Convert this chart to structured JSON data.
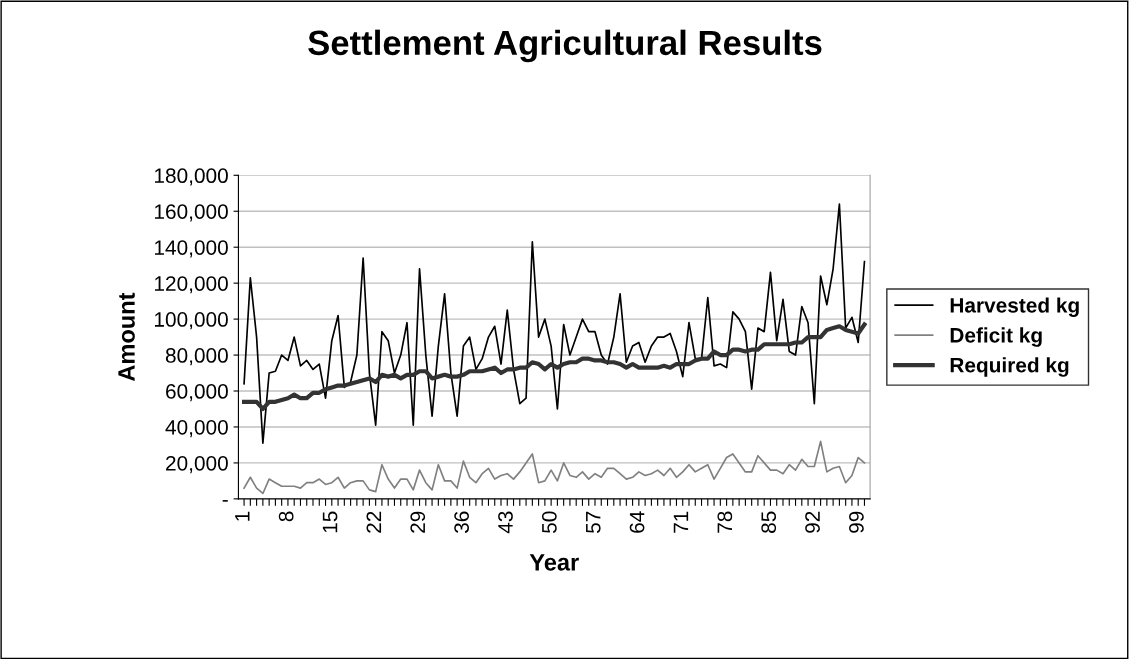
{
  "chart_data": {
    "type": "line",
    "title": "Settlement Agricultural Results",
    "xlabel": "Year",
    "ylabel": "Amount",
    "categories": [
      "1",
      null,
      null,
      null,
      null,
      null,
      null,
      "8",
      null,
      null,
      null,
      null,
      null,
      null,
      "15",
      null,
      null,
      null,
      null,
      null,
      null,
      "22",
      null,
      null,
      null,
      null,
      null,
      null,
      "29",
      null,
      null,
      null,
      null,
      null,
      null,
      "36",
      null,
      null,
      null,
      null,
      null,
      null,
      "43",
      null,
      null,
      null,
      null,
      null,
      null,
      "50",
      null,
      null,
      null,
      null,
      null,
      null,
      "57",
      null,
      null,
      null,
      null,
      null,
      null,
      "64",
      null,
      null,
      null,
      null,
      null,
      null,
      "71",
      null,
      null,
      null,
      null,
      null,
      null,
      "78",
      null,
      null,
      null,
      null,
      null,
      null,
      "85",
      null,
      null,
      null,
      null,
      null,
      null,
      "92",
      null,
      null,
      null,
      null,
      null,
      null,
      "99",
      null
    ],
    "series": [
      {
        "name": "Harvested kg",
        "color": "#000000",
        "values": [
          64000,
          123000,
          90000,
          31000,
          70000,
          71000,
          80000,
          77000,
          90000,
          74000,
          77000,
          72000,
          75000,
          56000,
          88000,
          102000,
          62000,
          65000,
          80000,
          134000,
          70000,
          41000,
          93000,
          88000,
          70000,
          80000,
          98000,
          41000,
          128000,
          80000,
          46000,
          85000,
          114000,
          70000,
          46000,
          85000,
          90000,
          72000,
          78000,
          90000,
          96000,
          75000,
          105000,
          72000,
          53000,
          56000,
          143000,
          90000,
          100000,
          85000,
          50000,
          97000,
          80000,
          90000,
          100000,
          93000,
          93000,
          80000,
          75000,
          90000,
          114000,
          76000,
          85000,
          87000,
          76000,
          85000,
          90000,
          90000,
          92000,
          82000,
          68000,
          98000,
          78000,
          78000,
          112000,
          74000,
          75000,
          73000,
          104000,
          100000,
          93000,
          61000,
          95000,
          93000,
          126000,
          88000,
          111000,
          82000,
          80000,
          107000,
          98000,
          53000,
          124000,
          108000,
          128000,
          164000,
          95000,
          101000,
          87000,
          132000
        ]
      },
      {
        "name": "Deficit kg",
        "color": "#808080",
        "values": [
          6000,
          12000,
          6000,
          3000,
          11000,
          9000,
          7000,
          7000,
          7000,
          6000,
          9000,
          9000,
          11000,
          8000,
          9000,
          12000,
          6000,
          9000,
          10000,
          10000,
          5000,
          4000,
          19000,
          11000,
          6000,
          11000,
          11000,
          5000,
          16000,
          9000,
          5000,
          19000,
          10000,
          10000,
          6000,
          21000,
          12000,
          9000,
          14000,
          17000,
          11000,
          13000,
          14000,
          11000,
          15000,
          20000,
          25000,
          9000,
          10000,
          16000,
          10000,
          20000,
          13000,
          12000,
          15000,
          11000,
          14000,
          12000,
          17000,
          17000,
          14000,
          11000,
          12000,
          15000,
          13000,
          14000,
          16000,
          13000,
          17000,
          12000,
          15000,
          19000,
          15000,
          17000,
          19000,
          11000,
          17000,
          23000,
          25000,
          20000,
          15000,
          15000,
          24000,
          20000,
          16000,
          16000,
          14000,
          19000,
          16000,
          22000,
          18000,
          18000,
          32000,
          15000,
          17000,
          18000,
          9000,
          13000,
          23000,
          20000
        ]
      },
      {
        "name": "Required kg",
        "color": "#333333",
        "values": [
          54000,
          54000,
          54000,
          50000,
          54000,
          54000,
          55000,
          56000,
          58000,
          56000,
          56000,
          59000,
          59000,
          61000,
          62000,
          63000,
          63000,
          64000,
          65000,
          66000,
          67000,
          65000,
          69000,
          68000,
          69000,
          67000,
          69000,
          69000,
          71000,
          71000,
          67000,
          68000,
          69000,
          68000,
          68000,
          69000,
          71000,
          71000,
          71000,
          72000,
          73000,
          70000,
          72000,
          72000,
          73000,
          73000,
          76000,
          75000,
          72000,
          75000,
          73000,
          75000,
          76000,
          76000,
          78000,
          78000,
          77000,
          77000,
          76000,
          76000,
          75000,
          73000,
          75000,
          73000,
          73000,
          73000,
          73000,
          74000,
          73000,
          75000,
          75000,
          75000,
          77000,
          78000,
          78000,
          82000,
          80000,
          80000,
          83000,
          83000,
          82000,
          83000,
          83000,
          86000,
          86000,
          86000,
          86000,
          86000,
          87000,
          87000,
          90000,
          90000,
          90000,
          94000,
          95000,
          96000,
          94000,
          93000,
          92000,
          97000
        ]
      }
    ],
    "ylim": [
      0,
      180000
    ],
    "yticks": [
      {
        "value": 0,
        "label": "-"
      },
      {
        "value": 20000,
        "label": "20,000"
      },
      {
        "value": 40000,
        "label": "40,000"
      },
      {
        "value": 60000,
        "label": "60,000"
      },
      {
        "value": 80000,
        "label": "80,000"
      },
      {
        "value": 100000,
        "label": "100,000"
      },
      {
        "value": 120000,
        "label": "120,000"
      },
      {
        "value": 140000,
        "label": "140,000"
      },
      {
        "value": 160000,
        "label": "160,000"
      },
      {
        "value": 180000,
        "label": "180,000"
      }
    ],
    "grid": "y",
    "legend": "right",
    "marker": "none",
    "line_style": "solid"
  }
}
